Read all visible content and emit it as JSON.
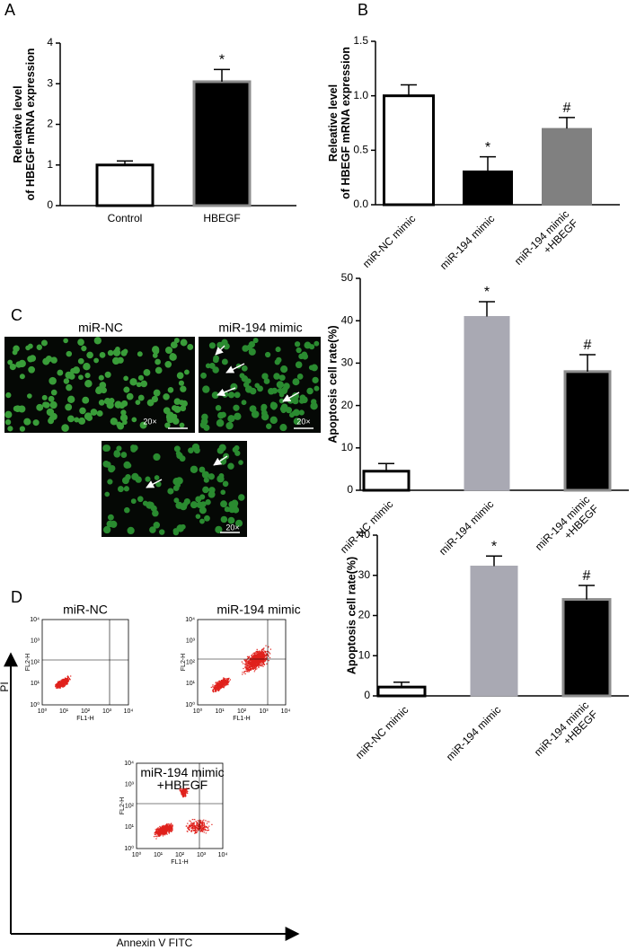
{
  "figure": {
    "panel_c_images": {
      "panel": "C",
      "labels": [
        "miR-NC",
        "miR-194 mimic"
      ],
      "scale_labels": [
        "20×",
        "20×",
        "20×"
      ]
    },
    "panel_d_flow": {
      "panel": "D",
      "y_axis_label": "PI",
      "x_axis_label": "Annexin V FITC",
      "plots": [
        {
          "title": "miR-NC"
        },
        {
          "title": "miR-194 mimic"
        },
        {
          "title": "miR-194 mimic\n+HBEGF"
        }
      ],
      "tick_labels": [
        "10⁰",
        "10¹",
        "10²",
        "10³",
        "10⁴"
      ],
      "x_label": "FL1-H",
      "y_label": "FL2-H"
    }
  },
  "chart_data": [
    {
      "type": "bar",
      "panel": "A",
      "ylabel": "Releative level\nof HBEGF mRNA expression",
      "categories": [
        "Control",
        "HBEGF"
      ],
      "values": [
        1.0,
        3.05
      ],
      "errors": [
        0.1,
        0.3
      ],
      "annotations": [
        null,
        "*"
      ],
      "colors": [
        "#ffffff",
        "#000000"
      ],
      "edgecolors": [
        "#000000",
        "#8c8c8c"
      ],
      "ylim": [
        0,
        4
      ],
      "yticks": [
        0,
        1,
        2,
        3,
        4
      ]
    },
    {
      "type": "bar",
      "panel": "B",
      "ylabel": "Releative level\nof HBEGF mRNA expression",
      "categories": [
        "miR-NC mimic",
        "miR-194 mimic",
        "miR-194 mimic\n+HBEGF"
      ],
      "values": [
        1.0,
        0.31,
        0.7
      ],
      "errors": [
        0.1,
        0.13,
        0.1
      ],
      "annotations": [
        null,
        "*",
        "#"
      ],
      "colors": [
        "#ffffff",
        "#000000",
        "#808080"
      ],
      "edgecolors": [
        "#000000",
        "#000000",
        "#808080"
      ],
      "ylim": [
        0,
        1.5
      ],
      "yticks": [
        {
          "value": 0,
          "label": "0.0"
        },
        {
          "value": 0.5,
          "label": "0.5"
        },
        {
          "value": 1,
          "label": "1.0"
        },
        {
          "value": 1.5,
          "label": "1.5"
        }
      ]
    },
    {
      "type": "bar",
      "ylabel": "Apoptosis cell rate(%)",
      "categories": [
        "miR-NC mimic",
        "miR-194 mimic",
        "miR-194 mimic\n+HBEGF"
      ],
      "values": [
        4.5,
        41,
        28
      ],
      "errors": [
        1.8,
        3.5,
        4
      ],
      "annotations": [
        null,
        "*",
        "#"
      ],
      "colors": [
        "#ffffff",
        "#a9a9b3",
        "#000000"
      ],
      "edgecolors": [
        "#000000",
        "#a9a9b3",
        "#8c8c8c"
      ],
      "ylim": [
        0,
        50
      ],
      "yticks": [
        0,
        10,
        20,
        30,
        40,
        50
      ]
    },
    {
      "type": "bar",
      "ylabel": "Apoptosis cell rate(%)",
      "categories": [
        "miR-NC mimic",
        "miR-194 mimic",
        "miR-194 mimic\n+HBEGF"
      ],
      "values": [
        2.2,
        32.3,
        24
      ],
      "errors": [
        1.2,
        2.5,
        3.5
      ],
      "annotations": [
        null,
        "*",
        "#"
      ],
      "colors": [
        "#ffffff",
        "#a9a9b3",
        "#000000"
      ],
      "edgecolors": [
        "#000000",
        "#a9a9b3",
        "#8c8c8c"
      ],
      "ylim": [
        0,
        40
      ],
      "yticks": [
        0,
        10,
        20,
        30,
        40
      ]
    }
  ]
}
